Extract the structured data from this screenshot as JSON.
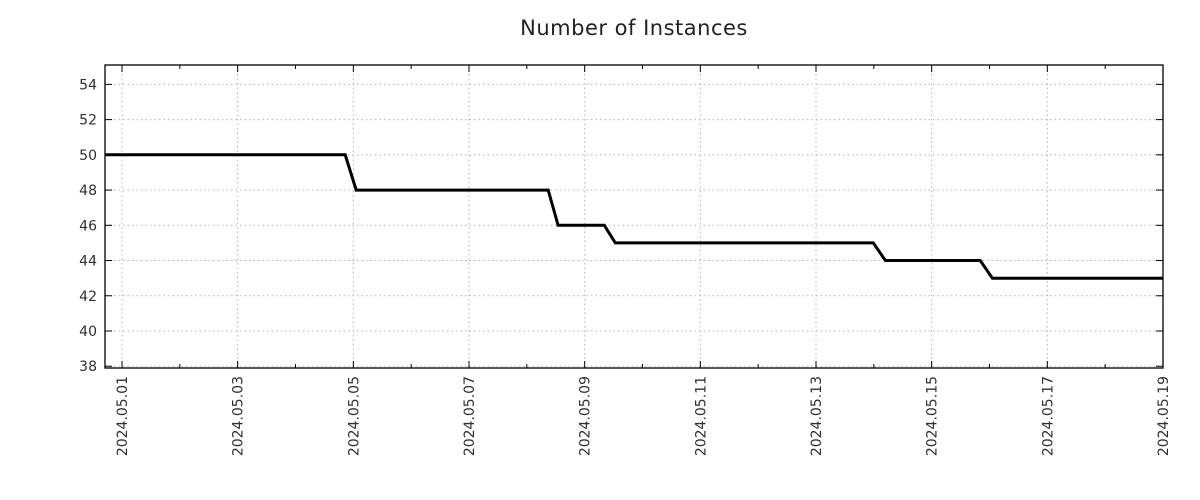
{
  "chart_data": {
    "type": "line",
    "subtype": "step",
    "title": "Number of Instances",
    "xlabel": "",
    "ylabel": "",
    "grid": true,
    "grid_style": "dotted",
    "legend": "none",
    "line_color": "#000000",
    "grid_color": "#b3b3b3",
    "axis_color": "#000000",
    "text_color": "#303030",
    "ylim": [
      37.9,
      55.1
    ],
    "y_ticks": [
      38,
      40,
      42,
      44,
      46,
      48,
      50,
      52,
      54
    ],
    "x_range_days": [
      0.706,
      19.0
    ],
    "x_major_ticks": [
      {
        "day": 1,
        "label": "2024.05.01"
      },
      {
        "day": 3,
        "label": "2024.05.03"
      },
      {
        "day": 5,
        "label": "2024.05.05"
      },
      {
        "day": 7,
        "label": "2024.05.07"
      },
      {
        "day": 9,
        "label": "2024.05.09"
      },
      {
        "day": 11,
        "label": "2024.05.11"
      },
      {
        "day": 13,
        "label": "2024.05.13"
      },
      {
        "day": 15,
        "label": "2024.05.15"
      },
      {
        "day": 17,
        "label": "2024.05.17"
      },
      {
        "day": 19,
        "label": "2024.05.19"
      }
    ],
    "x_minor_days": [
      2,
      4,
      6,
      8,
      10,
      12,
      14,
      16,
      18
    ],
    "series": [
      {
        "name": "instances",
        "color": "#000000",
        "points_day_value": [
          [
            0.706,
            50
          ],
          [
            4.86,
            50
          ],
          [
            5.05,
            48
          ],
          [
            8.37,
            48
          ],
          [
            8.54,
            46
          ],
          [
            9.34,
            46
          ],
          [
            9.53,
            45
          ],
          [
            13.99,
            45
          ],
          [
            14.2,
            44
          ],
          [
            15.84,
            44
          ],
          [
            16.05,
            43
          ],
          [
            19.0,
            43
          ]
        ]
      }
    ],
    "step_summary": [
      {
        "value": 50,
        "until": "2024.05.05"
      },
      {
        "value": 48,
        "until": "2024.05.08"
      },
      {
        "value": 46,
        "until": "2024.05.09"
      },
      {
        "value": 45,
        "until": "2024.05.14"
      },
      {
        "value": 44,
        "until": "2024.05.16"
      },
      {
        "value": 43,
        "until": "2024.05.19"
      }
    ]
  }
}
